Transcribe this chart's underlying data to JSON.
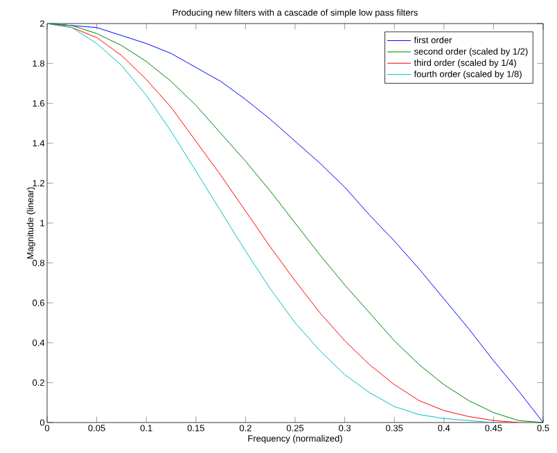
{
  "chart_data": {
    "type": "line",
    "title": "Producing new filters with a cascade of simple low pass filters",
    "xlabel": "Frequency (normalized)",
    "ylabel": "Magnitude (linear)",
    "x": [
      0,
      0.025,
      0.05,
      0.075,
      0.1,
      0.125,
      0.15,
      0.175,
      0.2,
      0.225,
      0.25,
      0.275,
      0.3,
      0.325,
      0.35,
      0.375,
      0.4,
      0.425,
      0.45,
      0.475,
      0.5
    ],
    "series": [
      {
        "name": "first order",
        "color": "#0000ff",
        "values": [
          2,
          1.99,
          1.98,
          1.94,
          1.9,
          1.85,
          1.78,
          1.71,
          1.62,
          1.52,
          1.41,
          1.3,
          1.18,
          1.04,
          0.91,
          0.77,
          0.62,
          0.47,
          0.31,
          0.16,
          0
        ]
      },
      {
        "name": "second order (scaled by 1/2)",
        "color": "#008000",
        "values": [
          2,
          1.99,
          1.95,
          1.89,
          1.81,
          1.71,
          1.59,
          1.45,
          1.31,
          1.16,
          1.0,
          0.84,
          0.69,
          0.55,
          0.41,
          0.29,
          0.19,
          0.11,
          0.05,
          0.01,
          0
        ]
      },
      {
        "name": "third order (scaled by 1/4)",
        "color": "#ff0000",
        "values": [
          2,
          1.98,
          1.93,
          1.84,
          1.72,
          1.58,
          1.41,
          1.24,
          1.06,
          0.88,
          0.71,
          0.55,
          0.41,
          0.29,
          0.19,
          0.11,
          0.06,
          0.03,
          0.01,
          0,
          null
        ]
      },
      {
        "name": "fourth order (scaled by 1/8)",
        "color": "#00bfbf",
        "values": [
          2,
          1.98,
          1.9,
          1.79,
          1.64,
          1.46,
          1.26,
          1.06,
          0.86,
          0.67,
          0.5,
          0.36,
          0.24,
          0.15,
          0.08,
          0.04,
          0.02,
          0.01,
          0,
          null,
          null
        ]
      }
    ],
    "xlim": [
      0,
      0.5
    ],
    "xticks": [
      0,
      0.05,
      0.1,
      0.15,
      0.2,
      0.25,
      0.3,
      0.35,
      0.4,
      0.45,
      0.5
    ],
    "ylim": [
      0,
      2
    ],
    "yticks": [
      0,
      0.2,
      0.4,
      0.6,
      0.8,
      1,
      1.2,
      1.4,
      1.6,
      1.8,
      2
    ],
    "legend": "top right",
    "grid": false,
    "marker": "none",
    "line_style": "solid"
  }
}
